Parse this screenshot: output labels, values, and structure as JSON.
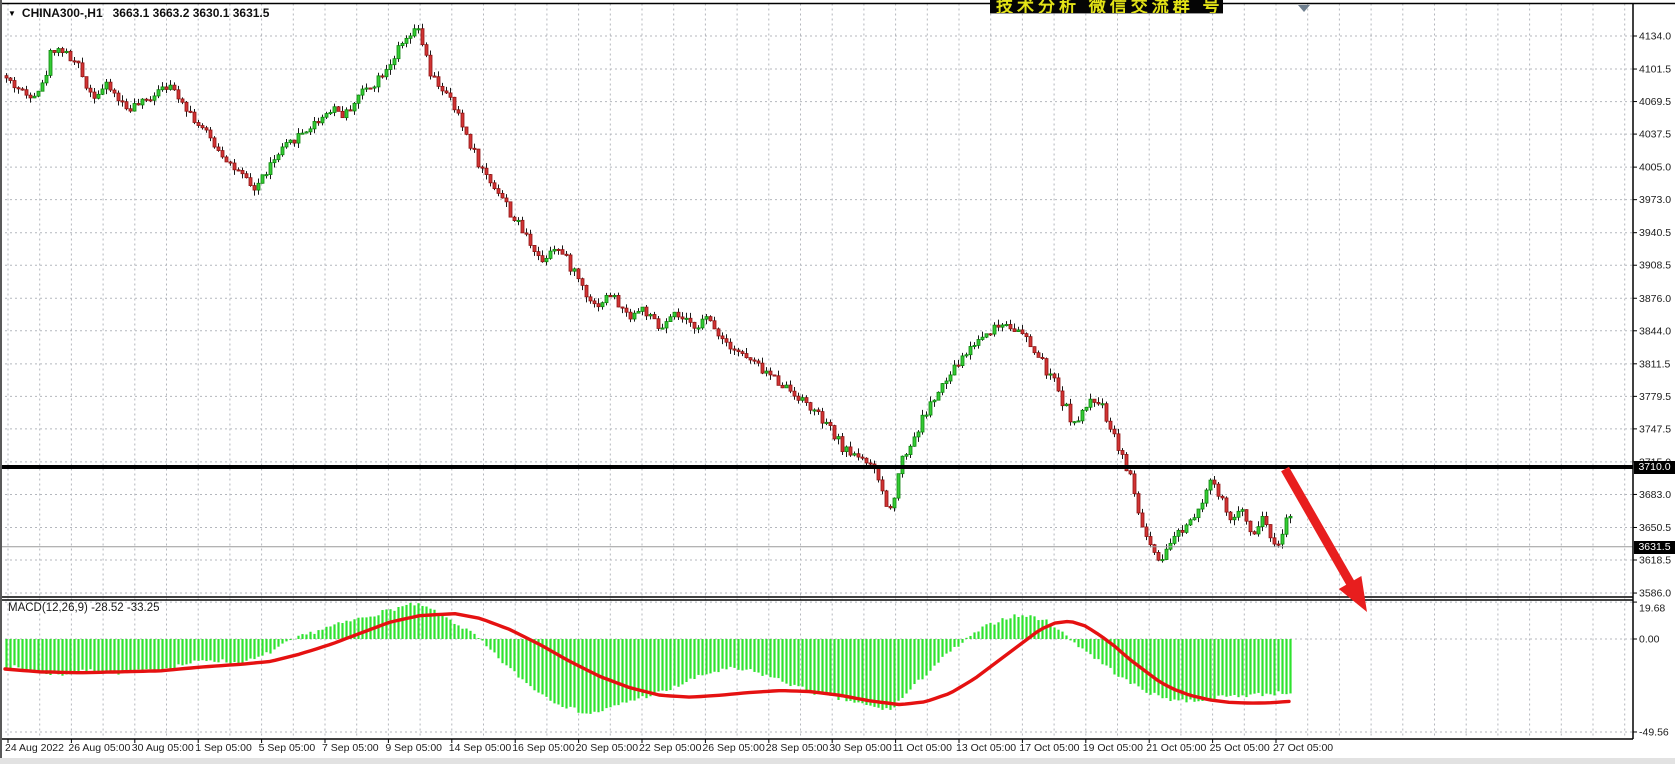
{
  "window_title": "CHINA300-,H1 chart",
  "header": {
    "dropdown_icon": "symbol-dropdown",
    "symbol_period": "CHINA300-,H1",
    "ohlc_text": "3663.1 3663.2 3630.1 3631.5"
  },
  "banner": {
    "text": "技术分析 微信交流群 号",
    "bg": "#050505",
    "fg": "#e3e317"
  },
  "price_axis": {
    "ticks": [
      {
        "label": "4134.0",
        "value": 4134.0
      },
      {
        "label": "4101.5",
        "value": 4101.5
      },
      {
        "label": "4069.5",
        "value": 4069.5
      },
      {
        "label": "4037.5",
        "value": 4037.5
      },
      {
        "label": "4005.0",
        "value": 4005.0
      },
      {
        "label": "3973.0",
        "value": 3973.0
      },
      {
        "label": "3940.5",
        "value": 3940.5
      },
      {
        "label": "3908.5",
        "value": 3908.5
      },
      {
        "label": "3876.0",
        "value": 3876.0
      },
      {
        "label": "3844.0",
        "value": 3844.0
      },
      {
        "label": "3811.5",
        "value": 3811.5
      },
      {
        "label": "3779.5",
        "value": 3779.5
      },
      {
        "label": "3747.5",
        "value": 3747.5
      },
      {
        "label": "3715.0",
        "value": 3715.0
      },
      {
        "label": "3683.0",
        "value": 3683.0
      },
      {
        "label": "3650.5",
        "value": 3650.5
      },
      {
        "label": "3618.5",
        "value": 3618.5
      },
      {
        "label": "3586.0",
        "value": 3586.0
      }
    ],
    "hline_badge": "3710.0",
    "current_badge": "3631.5"
  },
  "macd_panel": {
    "label": "MACD(12,26,9) -28.52 -33.25",
    "ticks": [
      {
        "label": "19.68",
        "value": 19.68
      },
      {
        "label": "0.00",
        "value": 0.0
      },
      {
        "label": "-49.56",
        "value": -49.56
      }
    ]
  },
  "time_axis": {
    "labels": [
      "24 Aug 2022",
      "26 Aug 05:00",
      "30 Aug 05:00",
      "1 Sep 05:00",
      "5 Sep 05:00",
      "7 Sep 05:00",
      "9 Sep 05:00",
      "14 Sep 05:00",
      "16 Sep 05:00",
      "20 Sep 05:00",
      "22 Sep 05:00",
      "26 Sep 05:00",
      "28 Sep 05:00",
      "30 Sep 05:00",
      "11 Oct 05:00",
      "13 Oct 05:00",
      "17 Oct 05:00",
      "19 Oct 05:00",
      "21 Oct 05:00",
      "25 Oct 05:00",
      "27 Oct 05:00"
    ]
  },
  "colors": {
    "bull_fill": "#35cc35",
    "bull_edge": "#0c860c",
    "bear_fill": "#d23434",
    "bear_edge": "#8f1414",
    "wick": "#1a1a1a",
    "grid": "#b4b7bd",
    "hist": "#2ee22e",
    "signal": "#e51111",
    "hline": "#000000",
    "current_line": "#9a9a9a",
    "arrow": "#e81e1e",
    "axis_text": "#1c1c1c",
    "border": "#000000"
  },
  "chart_data": {
    "type": "candlestick",
    "symbol": "CHINA300-",
    "timeframe": "H1",
    "current_bar": {
      "open": 3663.1,
      "high": 3663.2,
      "low": 3630.1,
      "close": 3631.5
    },
    "y_range_main": [
      3586.0,
      4150.0
    ],
    "y_range_macd": [
      -52.0,
      21.0
    ],
    "levels": {
      "resistance_hline": 3710.0,
      "current_price": 3631.5
    },
    "macd_values": {
      "macd": -28.52,
      "signal": -33.25,
      "params": "12,26,9"
    },
    "price_path_anchors": [
      [
        5,
        4095
      ],
      [
        30,
        4075
      ],
      [
        45,
        4085
      ],
      [
        55,
        4122
      ],
      [
        65,
        4120
      ],
      [
        80,
        4105
      ],
      [
        95,
        4075
      ],
      [
        110,
        4085
      ],
      [
        130,
        4062
      ],
      [
        150,
        4070
      ],
      [
        165,
        4088
      ],
      [
        180,
        4078
      ],
      [
        200,
        4048
      ],
      [
        215,
        4030
      ],
      [
        240,
        4000
      ],
      [
        256,
        3982
      ],
      [
        272,
        4005
      ],
      [
        288,
        4025
      ],
      [
        304,
        4038
      ],
      [
        320,
        4050
      ],
      [
        336,
        4065
      ],
      [
        347,
        4055
      ],
      [
        363,
        4078
      ],
      [
        379,
        4090
      ],
      [
        395,
        4112
      ],
      [
        411,
        4132
      ],
      [
        422,
        4141
      ],
      [
        432,
        4095
      ],
      [
        443,
        4085
      ],
      [
        454,
        4068
      ],
      [
        470,
        4035
      ],
      [
        486,
        4000
      ],
      [
        502,
        3980
      ],
      [
        518,
        3952
      ],
      [
        534,
        3930
      ],
      [
        545,
        3912
      ],
      [
        555,
        3930
      ],
      [
        566,
        3918
      ],
      [
        577,
        3903
      ],
      [
        587,
        3885
      ],
      [
        598,
        3868
      ],
      [
        614,
        3880
      ],
      [
        630,
        3858
      ],
      [
        646,
        3866
      ],
      [
        662,
        3844
      ],
      [
        678,
        3860
      ],
      [
        694,
        3848
      ],
      [
        710,
        3856
      ],
      [
        726,
        3836
      ],
      [
        748,
        3818
      ],
      [
        769,
        3803
      ],
      [
        790,
        3788
      ],
      [
        812,
        3770
      ],
      [
        833,
        3746
      ],
      [
        849,
        3726
      ],
      [
        865,
        3720
      ],
      [
        881,
        3698
      ],
      [
        892,
        3663
      ],
      [
        902,
        3712
      ],
      [
        916,
        3738
      ],
      [
        931,
        3768
      ],
      [
        946,
        3790
      ],
      [
        961,
        3812
      ],
      [
        977,
        3832
      ],
      [
        993,
        3845
      ],
      [
        1009,
        3852
      ],
      [
        1025,
        3840
      ],
      [
        1041,
        3818
      ],
      [
        1057,
        3793
      ],
      [
        1068,
        3770
      ],
      [
        1079,
        3750
      ],
      [
        1089,
        3770
      ],
      [
        1100,
        3778
      ],
      [
        1111,
        3756
      ],
      [
        1121,
        3732
      ],
      [
        1132,
        3702
      ],
      [
        1143,
        3658
      ],
      [
        1153,
        3628
      ],
      [
        1164,
        3612
      ],
      [
        1175,
        3640
      ],
      [
        1188,
        3652
      ],
      [
        1200,
        3670
      ],
      [
        1213,
        3696
      ],
      [
        1224,
        3676
      ],
      [
        1235,
        3656
      ],
      [
        1245,
        3668
      ],
      [
        1256,
        3645
      ],
      [
        1267,
        3662
      ],
      [
        1278,
        3628
      ],
      [
        1289,
        3658
      ]
    ],
    "macd_hist_anchors": [
      [
        5,
        -14
      ],
      [
        30,
        -17
      ],
      [
        60,
        -19
      ],
      [
        90,
        -17
      ],
      [
        120,
        -18
      ],
      [
        150,
        -17
      ],
      [
        180,
        -14
      ],
      [
        210,
        -11
      ],
      [
        240,
        -13
      ],
      [
        260,
        -10
      ],
      [
        280,
        -4
      ],
      [
        300,
        1
      ],
      [
        320,
        5
      ],
      [
        340,
        8
      ],
      [
        360,
        11
      ],
      [
        380,
        14
      ],
      [
        400,
        17
      ],
      [
        415,
        18.5
      ],
      [
        430,
        16
      ],
      [
        445,
        12
      ],
      [
        460,
        7
      ],
      [
        475,
        2
      ],
      [
        490,
        -6
      ],
      [
        510,
        -16
      ],
      [
        530,
        -25
      ],
      [
        550,
        -32
      ],
      [
        570,
        -37
      ],
      [
        590,
        -40
      ],
      [
        610,
        -37
      ],
      [
        630,
        -33
      ],
      [
        650,
        -30
      ],
      [
        670,
        -27
      ],
      [
        690,
        -22
      ],
      [
        710,
        -18
      ],
      [
        730,
        -16
      ],
      [
        750,
        -17
      ],
      [
        770,
        -20
      ],
      [
        790,
        -24
      ],
      [
        810,
        -28
      ],
      [
        830,
        -31
      ],
      [
        850,
        -33
      ],
      [
        870,
        -36
      ],
      [
        890,
        -38
      ],
      [
        905,
        -30
      ],
      [
        920,
        -22
      ],
      [
        935,
        -14
      ],
      [
        950,
        -7
      ],
      [
        965,
        -1
      ],
      [
        980,
        5
      ],
      [
        995,
        9
      ],
      [
        1010,
        12
      ],
      [
        1025,
        12.5
      ],
      [
        1040,
        11
      ],
      [
        1055,
        7
      ],
      [
        1065,
        2
      ],
      [
        1080,
        -4
      ],
      [
        1095,
        -10
      ],
      [
        1110,
        -16
      ],
      [
        1125,
        -22
      ],
      [
        1140,
        -26
      ],
      [
        1155,
        -30
      ],
      [
        1170,
        -32
      ],
      [
        1185,
        -33
      ],
      [
        1200,
        -32.5
      ],
      [
        1215,
        -31.5
      ],
      [
        1230,
        -30.5
      ],
      [
        1245,
        -30
      ],
      [
        1260,
        -29.5
      ],
      [
        1275,
        -29
      ],
      [
        1289,
        -28.5
      ]
    ],
    "macd_signal_anchors": [
      [
        5,
        -16
      ],
      [
        40,
        -17.5
      ],
      [
        80,
        -18
      ],
      [
        120,
        -17.5
      ],
      [
        160,
        -17
      ],
      [
        200,
        -15
      ],
      [
        240,
        -13.5
      ],
      [
        270,
        -12
      ],
      [
        300,
        -8
      ],
      [
        330,
        -3
      ],
      [
        360,
        3
      ],
      [
        390,
        9
      ],
      [
        420,
        12.5
      ],
      [
        455,
        13.5
      ],
      [
        480,
        11
      ],
      [
        510,
        5
      ],
      [
        540,
        -3
      ],
      [
        570,
        -12
      ],
      [
        600,
        -20
      ],
      [
        630,
        -26
      ],
      [
        660,
        -30
      ],
      [
        690,
        -31
      ],
      [
        720,
        -30
      ],
      [
        750,
        -28.5
      ],
      [
        780,
        -27.5
      ],
      [
        810,
        -28
      ],
      [
        840,
        -30
      ],
      [
        870,
        -33
      ],
      [
        900,
        -35
      ],
      [
        925,
        -33.5
      ],
      [
        950,
        -29
      ],
      [
        975,
        -21
      ],
      [
        995,
        -13
      ],
      [
        1010,
        -7
      ],
      [
        1025,
        -1
      ],
      [
        1040,
        5
      ],
      [
        1055,
        8.5
      ],
      [
        1070,
        9.5
      ],
      [
        1085,
        7
      ],
      [
        1100,
        2
      ],
      [
        1115,
        -4
      ],
      [
        1130,
        -11
      ],
      [
        1145,
        -17
      ],
      [
        1160,
        -23
      ],
      [
        1175,
        -27
      ],
      [
        1190,
        -30
      ],
      [
        1210,
        -32.5
      ],
      [
        1230,
        -33.8
      ],
      [
        1250,
        -34.2
      ],
      [
        1270,
        -34
      ],
      [
        1289,
        -33.25
      ]
    ],
    "annotation_arrow": {
      "from": [
        1285,
        469
      ],
      "to": [
        1367,
        612
      ]
    }
  }
}
